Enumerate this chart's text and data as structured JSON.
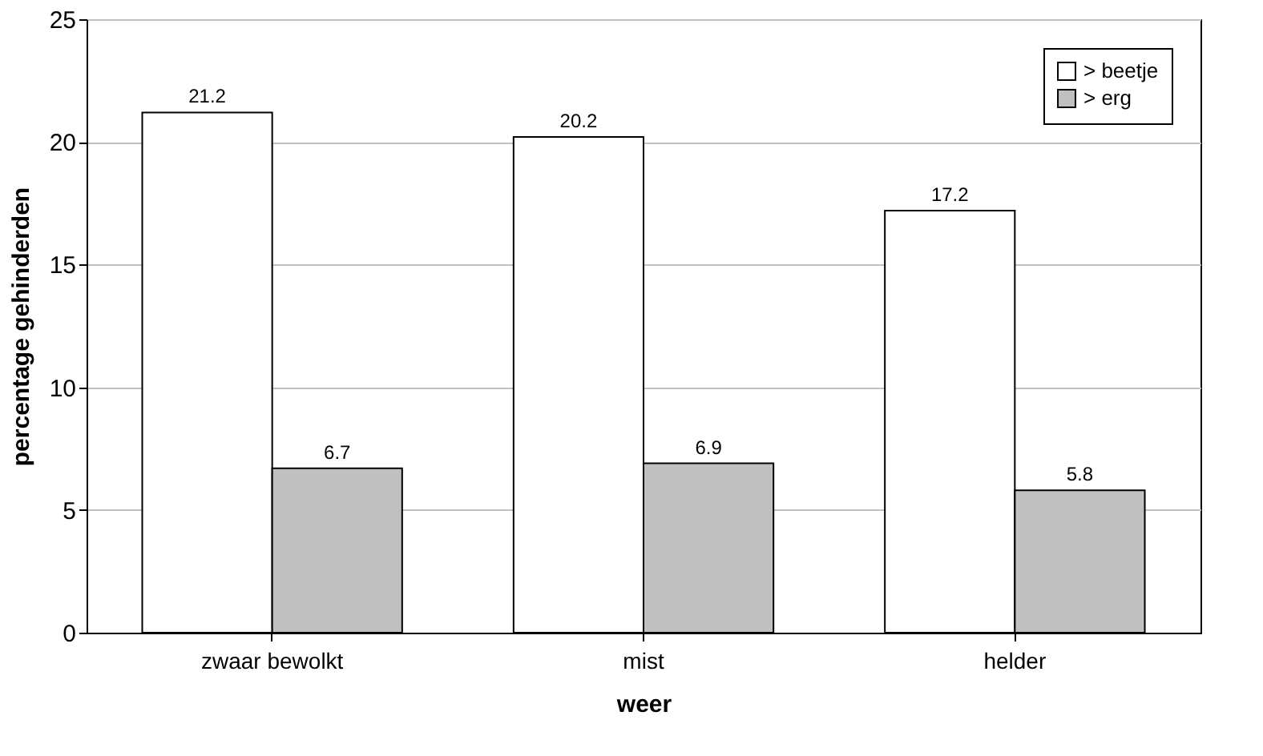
{
  "chart_data": {
    "type": "bar",
    "xlabel": "weer",
    "ylabel": "percentage gehinderden",
    "categories": [
      "zwaar bewolkt",
      "mist",
      "helder"
    ],
    "series": [
      {
        "name": "> beetje",
        "color": "#ffffff",
        "values": [
          21.2,
          20.2,
          17.2
        ]
      },
      {
        "name": "> erg",
        "color": "#c0c0c0",
        "values": [
          6.7,
          6.9,
          5.8
        ]
      }
    ],
    "ylim": [
      0,
      25
    ],
    "yticks": [
      0,
      5,
      10,
      15,
      20,
      25
    ],
    "grid": "y",
    "legend": "top right",
    "data_labels": true
  }
}
